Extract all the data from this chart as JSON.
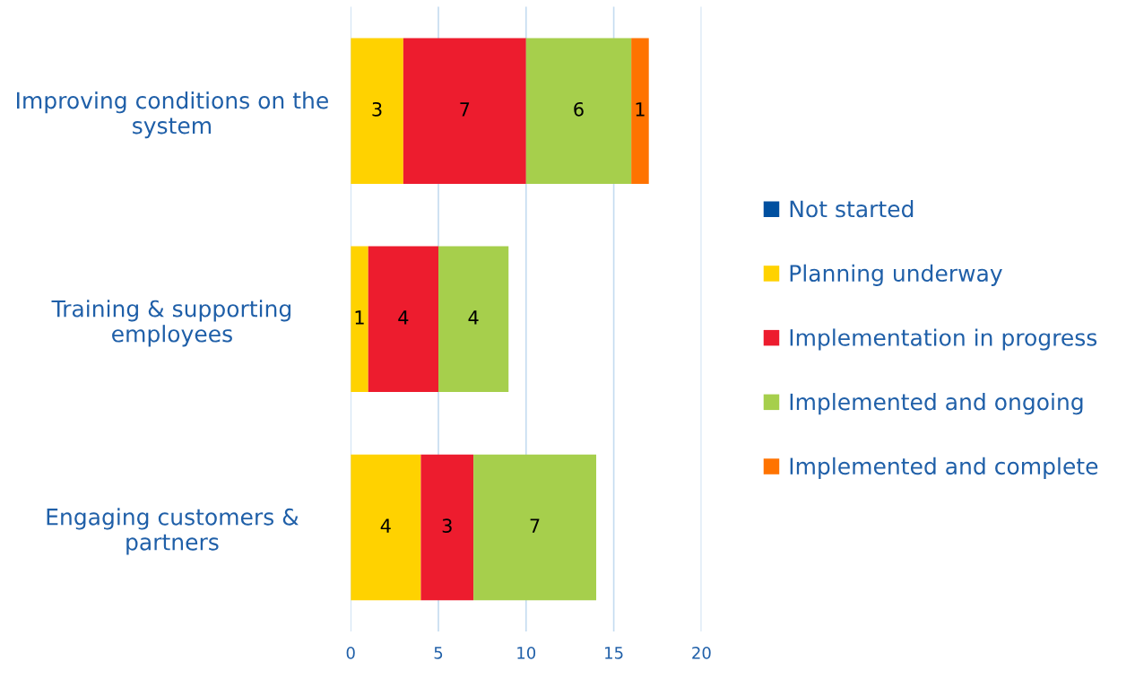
{
  "chart_data": {
    "type": "bar",
    "orientation": "horizontal",
    "stacked": true,
    "categories": [
      "Improving conditions on the system",
      "Training & supporting employees",
      "Engaging customers & partners"
    ],
    "series": [
      {
        "name": "Not started",
        "color": "#0050a0",
        "values": [
          0,
          0,
          0
        ],
        "value_labels": [
          null,
          null,
          null
        ]
      },
      {
        "name": "Planning underway",
        "color": "#ffd200",
        "values": [
          3,
          1,
          4
        ],
        "value_labels": [
          "3",
          "1",
          "4"
        ]
      },
      {
        "name": "Implementation in progress",
        "color": "#ed1c2e",
        "values": [
          7,
          4,
          3
        ],
        "value_labels": [
          "7",
          "4",
          "3"
        ]
      },
      {
        "name": "Implemented and ongoing",
        "color": "#a6cf4c",
        "values": [
          6,
          4,
          7
        ],
        "value_labels": [
          "6",
          "4",
          "7"
        ]
      },
      {
        "name": "Implemented and complete",
        "color": "#ff7300",
        "values": [
          1,
          0,
          0
        ],
        "value_labels": [
          "1",
          null,
          null
        ]
      }
    ],
    "xlim": [
      0,
      20
    ],
    "xticks": [
      0,
      5,
      10,
      15,
      20
    ],
    "grid": "x",
    "legend": "right"
  }
}
